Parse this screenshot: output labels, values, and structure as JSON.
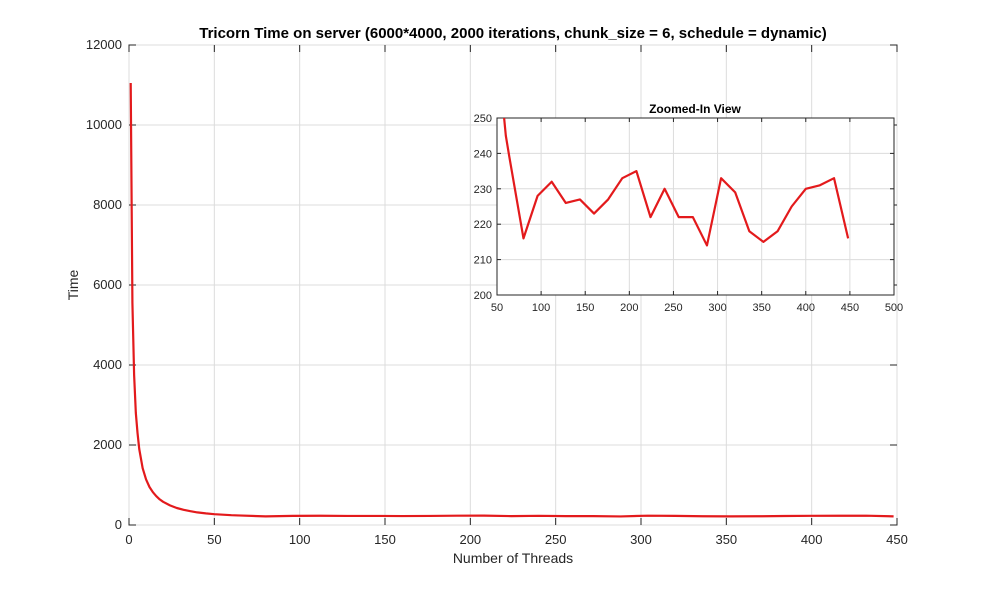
{
  "chart_data": [
    {
      "type": "line",
      "title": "Tricorn Time on server (6000*4000, 2000 iterations, chunk_size = 6, schedule = dynamic)",
      "xlabel": "Number of Threads",
      "ylabel": "Time",
      "xlim": [
        0,
        450
      ],
      "ylim": [
        0,
        12000
      ],
      "xticks": [
        0,
        50,
        100,
        150,
        200,
        250,
        300,
        350,
        400,
        450
      ],
      "yticks": [
        0,
        2000,
        4000,
        6000,
        8000,
        10000,
        12000
      ],
      "grid": true,
      "color": "#e31a1c",
      "series": [
        {
          "x": [
            1,
            2,
            3,
            4,
            5,
            6,
            8,
            10,
            12,
            14,
            16,
            18,
            20,
            24,
            28,
            32,
            36,
            40,
            45,
            50,
            55,
            60,
            64,
            80,
            96,
            112,
            128,
            144,
            160,
            176,
            192,
            208,
            224,
            240,
            256,
            272,
            288,
            304,
            320,
            336,
            352,
            368,
            384,
            400,
            416,
            432,
            448
          ],
          "y": [
            11050,
            5550,
            3750,
            2800,
            2300,
            1900,
            1420,
            1140,
            950,
            820,
            720,
            640,
            580,
            490,
            425,
            380,
            345,
            315,
            290,
            270,
            258,
            245,
            239,
            216,
            228,
            232,
            226,
            227,
            223,
            227,
            233,
            235,
            222,
            230,
            222,
            222,
            214,
            233,
            229,
            218,
            215,
            218,
            225,
            230,
            231,
            233,
            216
          ]
        }
      ]
    },
    {
      "type": "line",
      "title": "Zoomed-In View",
      "xlim": [
        50,
        500
      ],
      "ylim": [
        200,
        250
      ],
      "xticks": [
        50,
        100,
        150,
        200,
        250,
        300,
        350,
        400,
        450,
        500
      ],
      "yticks": [
        200,
        210,
        220,
        230,
        240,
        250
      ],
      "grid": true,
      "color": "#e31a1c",
      "series": [
        {
          "x": [
            55,
            60,
            64,
            80,
            96,
            112,
            128,
            144,
            160,
            176,
            192,
            208,
            224,
            240,
            256,
            272,
            288,
            304,
            320,
            336,
            352,
            368,
            384,
            400,
            416,
            432,
            448
          ],
          "y": [
            258,
            245,
            239,
            216,
            228,
            232,
            226,
            227,
            223,
            227,
            233,
            235,
            222,
            230,
            222,
            222,
            214,
            233,
            229,
            218,
            215,
            218,
            225,
            230,
            231,
            233,
            216
          ]
        }
      ]
    }
  ]
}
